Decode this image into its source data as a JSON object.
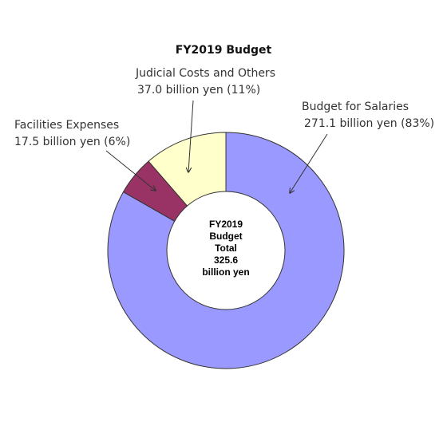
{
  "chart_data": {
    "type": "pie",
    "title": "FY2019 Budget",
    "total_value": 325.6,
    "center_label": [
      "FY2019",
      "Budget",
      "Total",
      "325.6",
      "billion yen"
    ],
    "slices": [
      {
        "name": "Budget for Salaries",
        "value": 271.1,
        "value_label": "271.1 billion yen (83%)",
        "percent": 83,
        "color": "#9999ff"
      },
      {
        "name": "Facilities Expenses",
        "value": 17.5,
        "value_label": "17.5 billion yen (6%)",
        "percent": 6,
        "color": "#993366"
      },
      {
        "name": "Judicial Costs and Others",
        "value": 37.0,
        "value_label": "37.0 billion yen (11%)",
        "percent": 11,
        "color": "#ffffcc"
      }
    ]
  }
}
